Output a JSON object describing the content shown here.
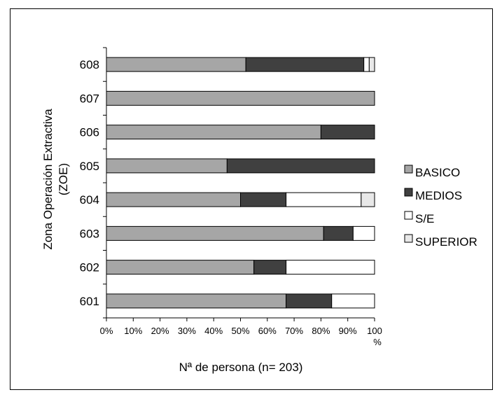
{
  "chart_data": {
    "type": "bar",
    "orientation": "horizontal",
    "stacked": "percent",
    "categories": [
      "601",
      "602",
      "603",
      "604",
      "605",
      "606",
      "607",
      "608"
    ],
    "series": [
      {
        "name": "BASICO",
        "color": "#a6a6a6",
        "values": [
          67,
          55,
          81,
          50,
          45,
          80,
          100,
          52
        ]
      },
      {
        "name": "MEDIOS",
        "color": "#404040",
        "values": [
          17,
          12,
          11,
          17,
          55,
          20,
          0,
          44
        ]
      },
      {
        "name": "S/E",
        "color": "#ffffff",
        "values": [
          16,
          33,
          8,
          28,
          0,
          0,
          0,
          2
        ]
      },
      {
        "name": "SUPERIOR",
        "color": "#e8e8e8",
        "values": [
          0,
          0,
          0,
          5,
          0,
          0,
          0,
          2
        ]
      }
    ],
    "xlim": [
      0,
      100
    ],
    "xticks": [
      "0%",
      "10%",
      "20%",
      "30%",
      "40%",
      "50%",
      "60%",
      "70%",
      "80%",
      "90%",
      "100\n%"
    ],
    "xlabel": "Nª de persona (n= 203)",
    "ylabel": [
      "Zona Operación Extractiva",
      "(ZOE)"
    ],
    "grid": false,
    "legend_position": "right"
  }
}
